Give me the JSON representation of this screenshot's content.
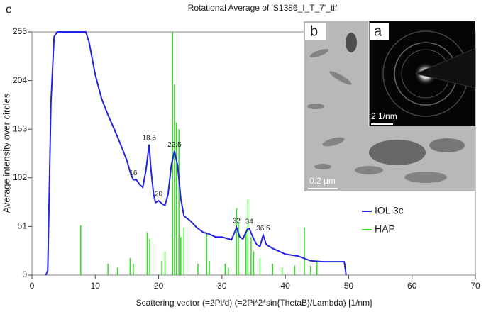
{
  "chart_data": {
    "type": "line",
    "panel_label": "c",
    "title": "Rotational Average of 'S1386_I_T_7'_tif",
    "x_label": "Scattering vector (=2Pi/d) (=2Pi*2*sin{ThetaB}/Lambda) [1/nm]",
    "y_label": "Average intensity over circles",
    "xlim": [
      0,
      70
    ],
    "xticks": [
      0,
      10,
      20,
      30,
      40,
      50,
      60,
      70
    ],
    "ylim": [
      0,
      255
    ],
    "yticks": [
      0,
      51,
      102,
      153,
      204,
      255
    ],
    "legend": "center right",
    "series": [
      {
        "name": "IOL 3c",
        "color": "#2424e0",
        "style": "line",
        "x": [
          2.2,
          2.5,
          3,
          3.5,
          4,
          8.5,
          9,
          10,
          11,
          12,
          13,
          14,
          15,
          15.5,
          16,
          16.5,
          17,
          17.5,
          18,
          18.5,
          18.8,
          19.2,
          19.5,
          20,
          20.5,
          21,
          21.5,
          22,
          22.5,
          23,
          23.5,
          24,
          25,
          26,
          27,
          28,
          29,
          30,
          31,
          31.5,
          32,
          32.3,
          32.8,
          33.3,
          34,
          34.3,
          35,
          35.5,
          36,
          36.5,
          37,
          38,
          39,
          40,
          42,
          44,
          46,
          48,
          49.3,
          49.6
        ],
        "values": [
          0,
          5,
          180,
          250,
          255,
          255,
          245,
          210,
          185,
          168,
          153,
          137,
          120,
          108,
          100,
          100,
          95,
          92,
          110,
          137,
          110,
          85,
          76,
          78,
          75,
          73,
          85,
          115,
          130,
          115,
          80,
          62,
          57,
          50,
          45,
          43,
          40,
          40,
          38,
          37,
          45,
          50,
          40,
          38,
          48,
          49,
          38,
          32,
          30,
          42,
          32,
          28,
          25,
          22,
          20,
          15,
          14,
          14,
          14,
          0
        ]
      },
      {
        "name": "HAP",
        "color": "#33dd22",
        "style": "sticks",
        "x": [
          7.7,
          12,
          13.5,
          15.5,
          16,
          18.2,
          18.6,
          20.5,
          21,
          22.2,
          22.5,
          22.8,
          23.2,
          23.5,
          24,
          26.2,
          27.6,
          28,
          30.5,
          31,
          32.3,
          32.6,
          33.8,
          34.1,
          34.6,
          35,
          36,
          38,
          39.5,
          41.5,
          43,
          44,
          45
        ],
        "values": [
          52,
          12,
          8,
          18,
          12,
          45,
          38,
          15,
          25,
          255,
          200,
          160,
          153,
          40,
          50,
          12,
          45,
          15,
          12,
          8,
          70,
          55,
          45,
          80,
          40,
          25,
          18,
          12,
          8,
          10,
          50,
          10,
          15
        ]
      }
    ],
    "annotations": [
      {
        "text": "16",
        "x": 16,
        "y": 100
      },
      {
        "text": "18.5",
        "x": 18.5,
        "y": 137
      },
      {
        "text": "20",
        "x": 20,
        "y": 78
      },
      {
        "text": "22.5",
        "x": 22.5,
        "y": 130
      },
      {
        "text": "32",
        "x": 32.3,
        "y": 50
      },
      {
        "text": "34",
        "x": 34.3,
        "y": 49
      },
      {
        "text": "36.5",
        "x": 36.5,
        "y": 42
      }
    ],
    "insets": [
      {
        "label": "b",
        "scale_bar": "0.2 µm"
      },
      {
        "label": "a",
        "scale_bar": "2 1/nm"
      }
    ]
  }
}
